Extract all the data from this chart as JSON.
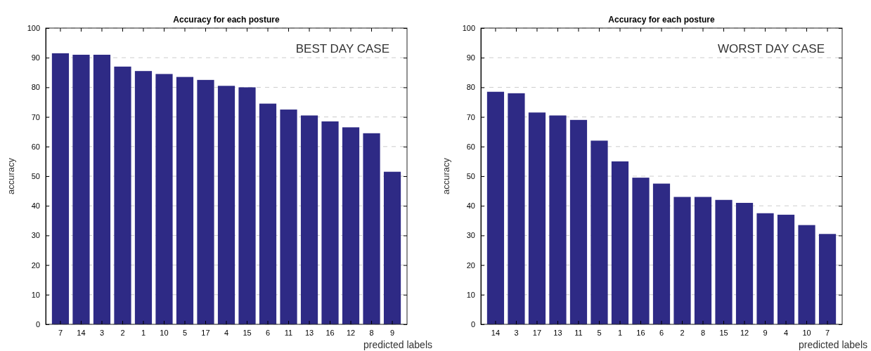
{
  "chart_data": [
    {
      "type": "bar",
      "title": "Accuracy for each posture",
      "xlabel": "predicted labels",
      "ylabel": "accuracy",
      "annotations": [
        "BEST DAY CASE"
      ],
      "categories": [
        "7",
        "14",
        "3",
        "2",
        "1",
        "10",
        "5",
        "17",
        "4",
        "15",
        "6",
        "11",
        "13",
        "16",
        "12",
        "8",
        "9"
      ],
      "values": [
        91.5,
        91,
        91,
        87,
        85.5,
        84.5,
        83.5,
        82.5,
        80.5,
        80,
        74.5,
        72.5,
        70.5,
        68.5,
        66.5,
        64.5,
        51.5
      ],
      "color": "#2e2a85",
      "ylim": [
        0,
        100
      ],
      "yticks": [
        0,
        10,
        20,
        30,
        40,
        50,
        60,
        70,
        80,
        90,
        100
      ],
      "grid": "y"
    },
    {
      "type": "bar",
      "title": "Accuracy for each posture",
      "xlabel": "predicted labels",
      "ylabel": "accuracy",
      "annotations": [
        "WORST DAY CASE"
      ],
      "categories": [
        "14",
        "3",
        "17",
        "13",
        "11",
        "5",
        "1",
        "16",
        "6",
        "2",
        "8",
        "15",
        "12",
        "9",
        "4",
        "10",
        "7"
      ],
      "values": [
        78.5,
        78,
        71.5,
        70.5,
        69,
        62,
        55,
        49.5,
        47.5,
        43,
        43,
        42,
        41,
        37.5,
        37,
        33.5,
        30.5
      ],
      "color": "#2e2a85",
      "ylim": [
        0,
        100
      ],
      "yticks": [
        0,
        10,
        20,
        30,
        40,
        50,
        60,
        70,
        80,
        90,
        100
      ],
      "grid": "y"
    }
  ]
}
